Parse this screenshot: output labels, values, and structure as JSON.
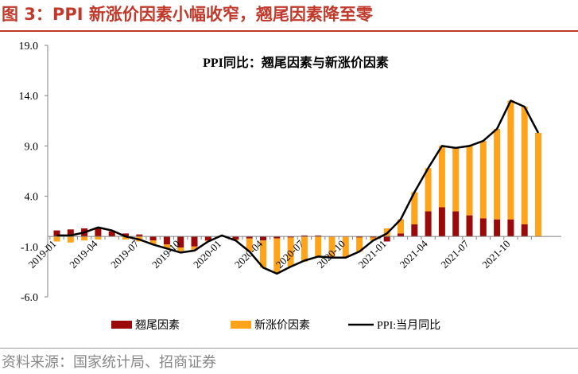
{
  "figure": {
    "title": "图 3：PPI 新涨价因素小幅收窄，翘尾因素降至零",
    "source": "资料来源：国家统计局、招商证券"
  },
  "colors": {
    "accent": "#c0392b",
    "carryover": "#9b0a0a",
    "new_price": "#ffa31a",
    "ppi_line": "#000000",
    "axis": "#808080",
    "source_text": "#888888"
  },
  "chart_data": {
    "type": "bar",
    "stacked": true,
    "title": "PPI同比：翘尾因素与新涨价因素",
    "categories": [
      "2019-01",
      "2019-02",
      "2019-03",
      "2019-04",
      "2019-05",
      "2019-06",
      "2019-07",
      "2019-08",
      "2019-09",
      "2019-10",
      "2019-11",
      "2019-12",
      "2020-01",
      "2020-02",
      "2020-03",
      "2020-04",
      "2020-05",
      "2020-06",
      "2020-07",
      "2020-08",
      "2020-09",
      "2020-10",
      "2020-11",
      "2020-12",
      "2021-01",
      "2021-02",
      "2021-03",
      "2021-04",
      "2021-05",
      "2021-06",
      "2021-07",
      "2021-08",
      "2021-09",
      "2021-10",
      "2021-11",
      "2021-12"
    ],
    "tick_labels": [
      "2019-01",
      "2019-04",
      "2019-07",
      "2019-10",
      "2020-01",
      "2020-04",
      "2020-07",
      "2020-10",
      "2021-01",
      "2021-04",
      "2021-07",
      "2021-10"
    ],
    "series": [
      {
        "name": "翘尾因素",
        "kind": "bar",
        "values": [
          0.6,
          0.7,
          0.8,
          0.9,
          0.5,
          0.3,
          0.2,
          -0.4,
          -0.8,
          -1.1,
          -1.0,
          -0.4,
          0.0,
          -0.3,
          -0.2,
          -0.4,
          -0.2,
          -0.1,
          0.1,
          0.1,
          0.0,
          0.0,
          -0.1,
          -0.1,
          -0.5,
          0.3,
          1.2,
          2.5,
          2.9,
          2.5,
          2.1,
          1.8,
          1.7,
          1.7,
          1.2,
          0.0
        ]
      },
      {
        "name": "新涨价因素",
        "kind": "bar",
        "values": [
          -0.5,
          -0.6,
          -0.4,
          -0.3,
          0.1,
          -0.3,
          -0.5,
          -0.4,
          -0.4,
          -0.5,
          -0.4,
          -0.1,
          0.1,
          -0.1,
          -1.3,
          -2.7,
          -3.5,
          -2.9,
          -2.5,
          -2.1,
          -2.1,
          -2.1,
          -1.4,
          -0.3,
          0.8,
          1.4,
          3.2,
          4.3,
          6.1,
          6.3,
          6.9,
          7.7,
          9.0,
          11.8,
          11.7,
          10.3
        ]
      },
      {
        "name": "PPI:当月同比",
        "kind": "line",
        "values": [
          0.1,
          0.1,
          0.4,
          0.9,
          0.6,
          0.0,
          -0.3,
          -0.8,
          -1.2,
          -1.6,
          -1.4,
          -0.5,
          0.1,
          -0.4,
          -1.5,
          -3.1,
          -3.7,
          -3.0,
          -2.4,
          -2.0,
          -2.1,
          -2.1,
          -1.5,
          -0.4,
          0.3,
          1.7,
          4.4,
          6.8,
          9.0,
          8.8,
          9.0,
          9.5,
          10.7,
          13.5,
          12.9,
          10.3
        ]
      }
    ],
    "legend": [
      "翘尾因素",
      "新涨价因素",
      "PPI:当月同比"
    ],
    "legend_position": "bottom",
    "ylim": [
      -6.0,
      19.0
    ],
    "yticks": [
      19.0,
      14.0,
      9.0,
      4.0,
      -1.0,
      -6.0
    ],
    "ytick_labels": [
      "19.0",
      "14.0",
      "9.0",
      "4.0",
      "-1.0",
      "-6.0"
    ],
    "xlabel": "",
    "ylabel": "",
    "grid": false
  }
}
